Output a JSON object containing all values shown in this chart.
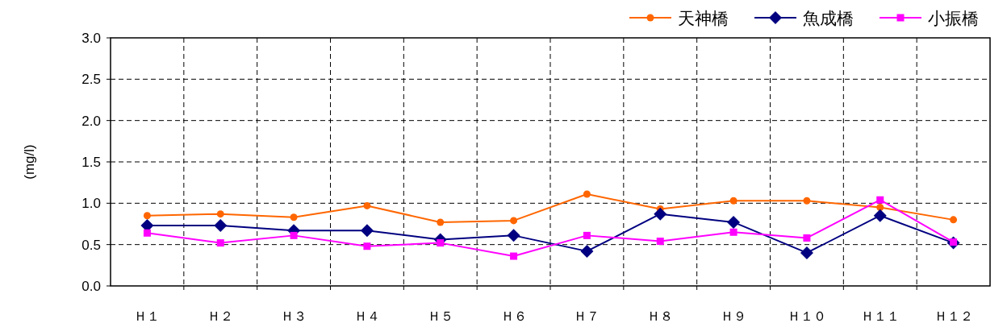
{
  "chart_data": {
    "type": "line",
    "ylabel": "(mg/l)",
    "categories": [
      "Ｈ１",
      "Ｈ２",
      "Ｈ３",
      "Ｈ４",
      "Ｈ５",
      "Ｈ６",
      "Ｈ７",
      "Ｈ８",
      "Ｈ９",
      "Ｈ１０",
      "Ｈ１１",
      "Ｈ１２"
    ],
    "series": [
      {
        "name": "天神橋",
        "color": "#ff6600",
        "marker": "circle",
        "values": [
          0.85,
          0.87,
          0.83,
          0.97,
          0.77,
          0.79,
          1.11,
          0.93,
          1.03,
          1.03,
          0.95,
          0.8
        ]
      },
      {
        "name": "魚成橋",
        "color": "#000080",
        "marker": "diamond",
        "values": [
          0.73,
          0.73,
          0.67,
          0.67,
          0.56,
          0.61,
          0.42,
          0.87,
          0.77,
          0.4,
          0.85,
          0.52
        ]
      },
      {
        "name": "小振橋",
        "color": "#ff00ff",
        "marker": "square",
        "values": [
          0.64,
          0.52,
          0.61,
          0.48,
          0.52,
          0.36,
          0.61,
          0.54,
          0.65,
          0.58,
          1.04,
          0.53
        ]
      }
    ],
    "ylim": [
      0,
      3
    ],
    "yticks": [
      {
        "value": 0,
        "label": "0.0"
      },
      {
        "value": 0.5,
        "label": "0.5"
      },
      {
        "value": 1,
        "label": "1.0"
      },
      {
        "value": 1.5,
        "label": "1.5"
      },
      {
        "value": 2,
        "label": "2.0"
      },
      {
        "value": 2.5,
        "label": "2.5"
      },
      {
        "value": 3,
        "label": "3.0"
      }
    ],
    "grid": true,
    "legend": "top right",
    "line_style": "solid"
  }
}
